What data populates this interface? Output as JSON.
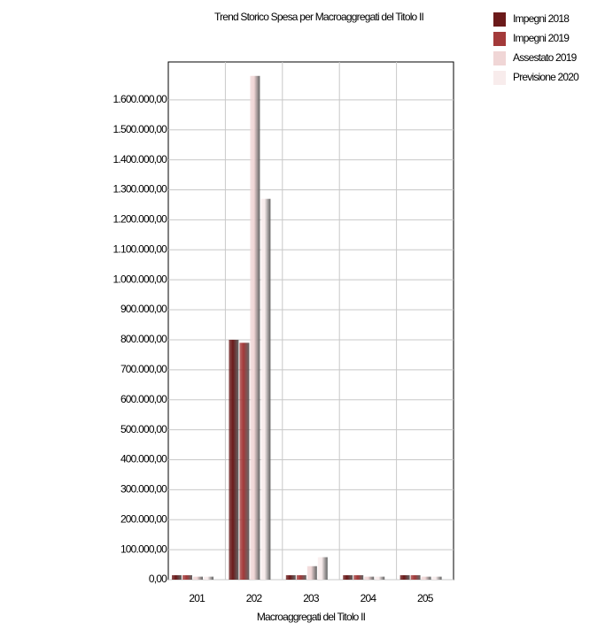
{
  "chart_data": {
    "type": "bar",
    "title": "Trend Storico Spesa per Macroaggregati del Titolo II",
    "x_label": "Macroaggregati del Titolo II",
    "categories": [
      "201",
      "202",
      "203",
      "204",
      "205"
    ],
    "series": [
      {
        "name": "Impegni 2018",
        "color": "#6b1a1a",
        "values": [
          15000,
          800000,
          15000,
          15000,
          15000
        ]
      },
      {
        "name": "Impegni 2019",
        "color": "#a33a3a",
        "values": [
          15000,
          790000,
          15000,
          15000,
          15000
        ]
      },
      {
        "name": "Assestato 2019",
        "color": "#f0d6d6",
        "values": [
          10000,
          1680000,
          45000,
          10000,
          10000
        ]
      },
      {
        "name": "Previsione 2020",
        "color": "#f8ecec",
        "values": [
          10000,
          1270000,
          75000,
          10000,
          10000
        ]
      }
    ],
    "ylim": [
      0,
      1700000
    ],
    "yticks": [
      {
        "value": 0,
        "label": "0,00"
      },
      {
        "value": 100000,
        "label": "100.000,00"
      },
      {
        "value": 200000,
        "label": "200.000,00"
      },
      {
        "value": 300000,
        "label": "300.000,00"
      },
      {
        "value": 400000,
        "label": "400.000,00"
      },
      {
        "value": 500000,
        "label": "500.000,00"
      },
      {
        "value": 600000,
        "label": "600.000,00"
      },
      {
        "value": 700000,
        "label": "700.000,00"
      },
      {
        "value": 800000,
        "label": "800.000,00"
      },
      {
        "value": 900000,
        "label": "900.000,00"
      },
      {
        "value": 1000000,
        "label": "1.000.000,00"
      },
      {
        "value": 1100000,
        "label": "1.100.000,00"
      },
      {
        "value": 1200000,
        "label": "1.200.000,00"
      },
      {
        "value": 1300000,
        "label": "1.300.000,00"
      },
      {
        "value": 1400000,
        "label": "1.400.000,00"
      },
      {
        "value": 1500000,
        "label": "1.500.000,00"
      },
      {
        "value": 1600000,
        "label": "1.600.000,00"
      }
    ],
    "grid": true,
    "legend": "top-right"
  }
}
